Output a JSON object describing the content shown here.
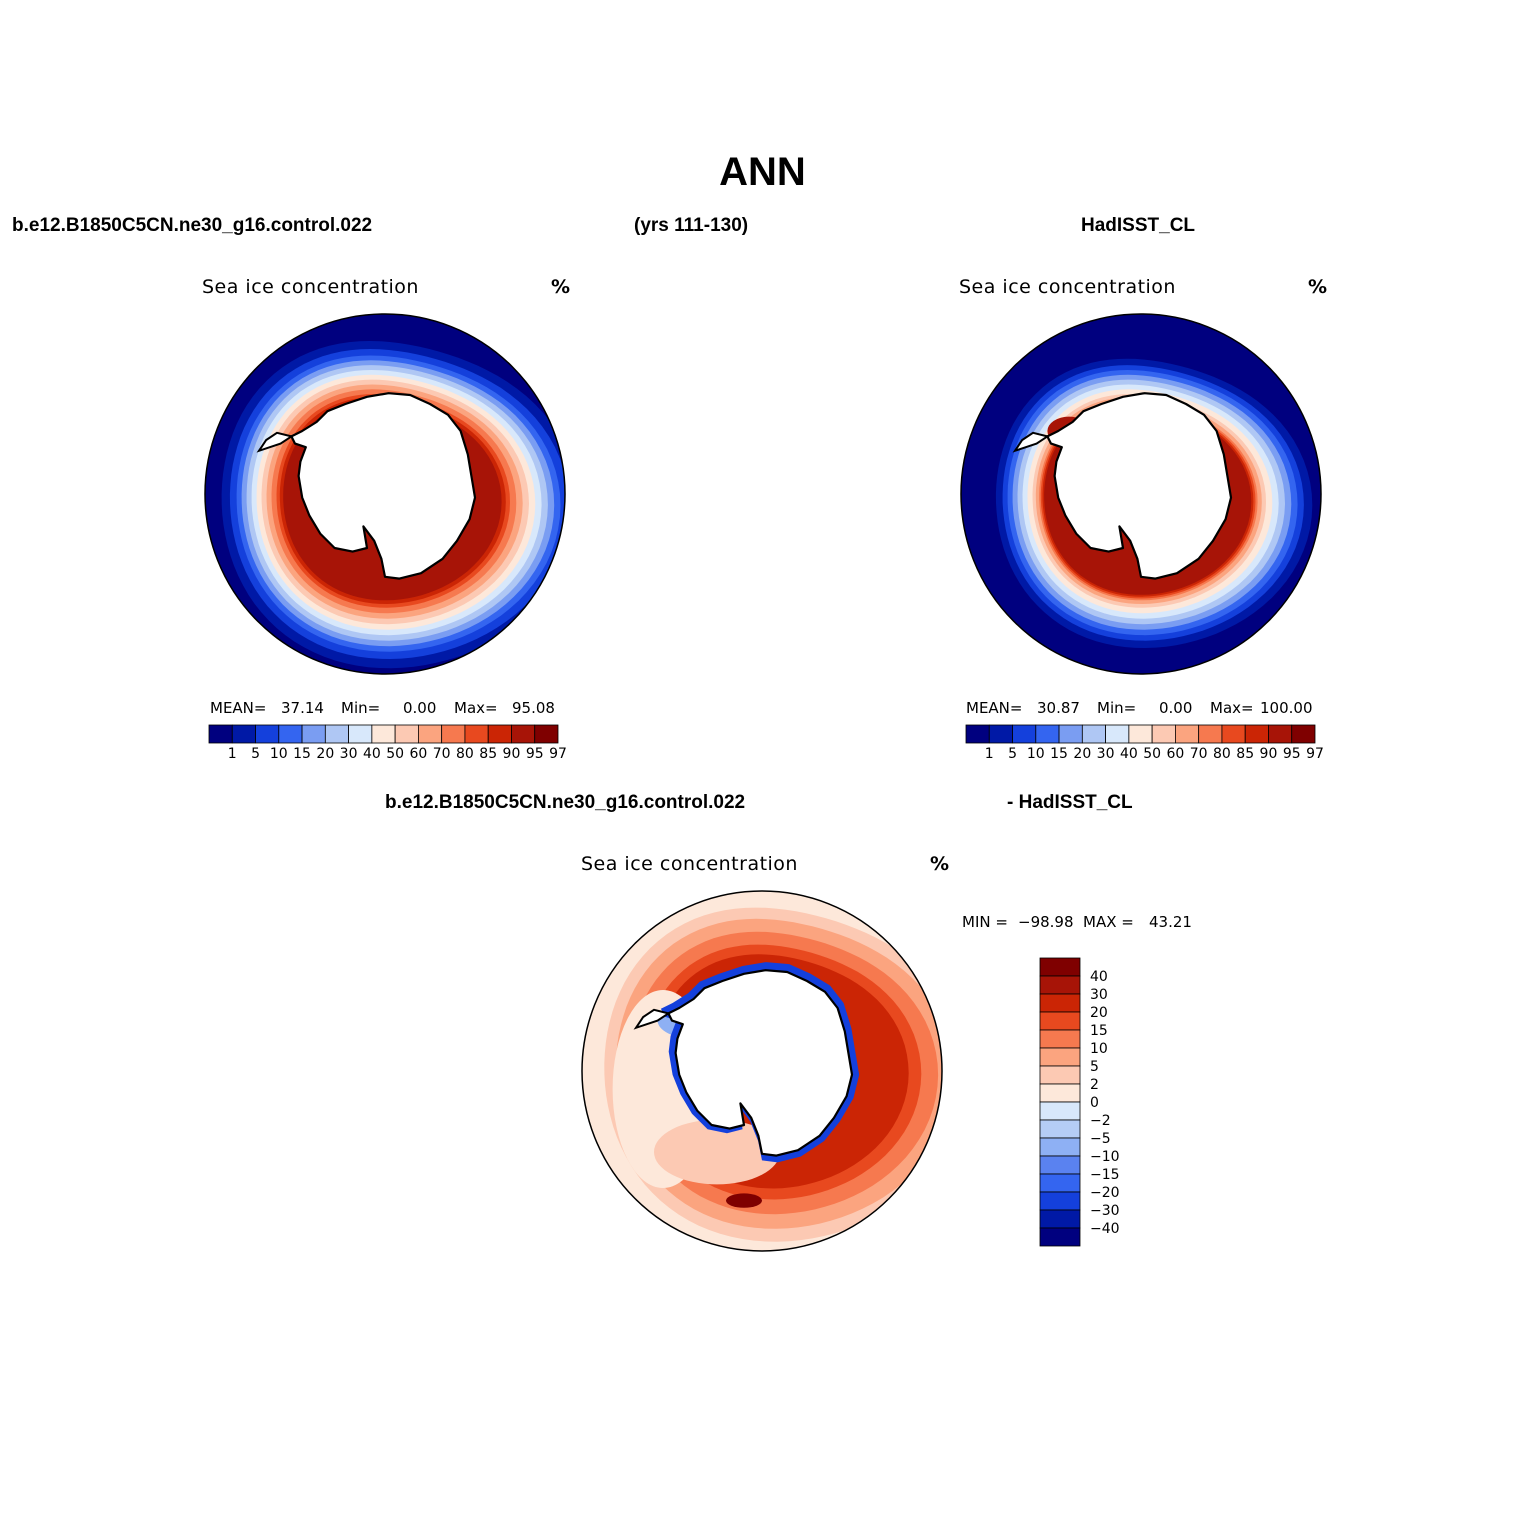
{
  "figure": {
    "title": "ANN",
    "header_left": "b.e12.B1850C5CN.ne30_g16.control.022",
    "header_middle": "(yrs 111-130)",
    "header_right": "HadISST_CL",
    "diff_header_left": "b.e12.B1850C5CN.ne30_g16.control.022",
    "diff_header_right": "- HadISST_CL"
  },
  "colors": {
    "abs_palette": [
      "#00007f",
      "#0019a6",
      "#1440dc",
      "#3465f0",
      "#7a9df2",
      "#afc7f4",
      "#d8e8fb",
      "#fde8da",
      "#fcc9b3",
      "#fba47f",
      "#f6794f",
      "#e8491f",
      "#cb2505",
      "#a71407",
      "#7f0000"
    ],
    "diff_palette": [
      "#00007f",
      "#0019a6",
      "#1440dc",
      "#3465f0",
      "#5a82f0",
      "#8eb0f4",
      "#b5cdf6",
      "#d8e8fb",
      "#fde8da",
      "#fcc9b3",
      "#fba47f",
      "#f6794f",
      "#e8491f",
      "#cb2505",
      "#a71407",
      "#7f0000"
    ],
    "land": "#ffffff",
    "coast": "#000000"
  },
  "chart_data": [
    {
      "type": "heatmap",
      "title": "Sea ice concentration",
      "units": "%",
      "projection": "south-polar-stereographic",
      "stats": {
        "mean_label": "MEAN=",
        "mean": "37.14",
        "min_label": "Min=",
        "min": "0.00",
        "max_label": "Max=",
        "max": "95.08"
      },
      "contour_levels": [
        1,
        5,
        10,
        15,
        20,
        30,
        40,
        50,
        60,
        70,
        80,
        85,
        90,
        95,
        97
      ],
      "colorbar_labels": [
        "1",
        "5",
        "10",
        "15",
        "20",
        "30",
        "40",
        "50",
        "60",
        "70",
        "80",
        "85",
        "90",
        "95",
        "97"
      ],
      "legend_position": "bottom"
    },
    {
      "type": "heatmap",
      "title": "Sea ice concentration",
      "units": "%",
      "projection": "south-polar-stereographic",
      "stats": {
        "mean_label": "MEAN=",
        "mean": "30.87",
        "min_label": "Min=",
        "min": "0.00",
        "max_label": "Max=",
        "max": "100.00"
      },
      "contour_levels": [
        1,
        5,
        10,
        15,
        20,
        30,
        40,
        50,
        60,
        70,
        80,
        85,
        90,
        95,
        97
      ],
      "colorbar_labels": [
        "1",
        "5",
        "10",
        "15",
        "20",
        "30",
        "40",
        "50",
        "60",
        "70",
        "80",
        "85",
        "90",
        "95",
        "97"
      ],
      "legend_position": "bottom"
    },
    {
      "type": "heatmap",
      "title": "Sea ice concentration",
      "units": "%",
      "projection": "south-polar-stereographic",
      "stats": {
        "min_label": "MIN =",
        "min": "−98.98",
        "max_label": "MAX =",
        "max": "43.21"
      },
      "contour_levels": [
        -40,
        -30,
        -20,
        -15,
        -10,
        -5,
        -2,
        0,
        2,
        5,
        10,
        15,
        20,
        30,
        40
      ],
      "colorbar_labels": [
        "40",
        "30",
        "20",
        "15",
        "10",
        "5",
        "2",
        "0",
        "−2",
        "−5",
        "−10",
        "−15",
        "−20",
        "−30",
        "−40"
      ],
      "legend_position": "right"
    }
  ]
}
